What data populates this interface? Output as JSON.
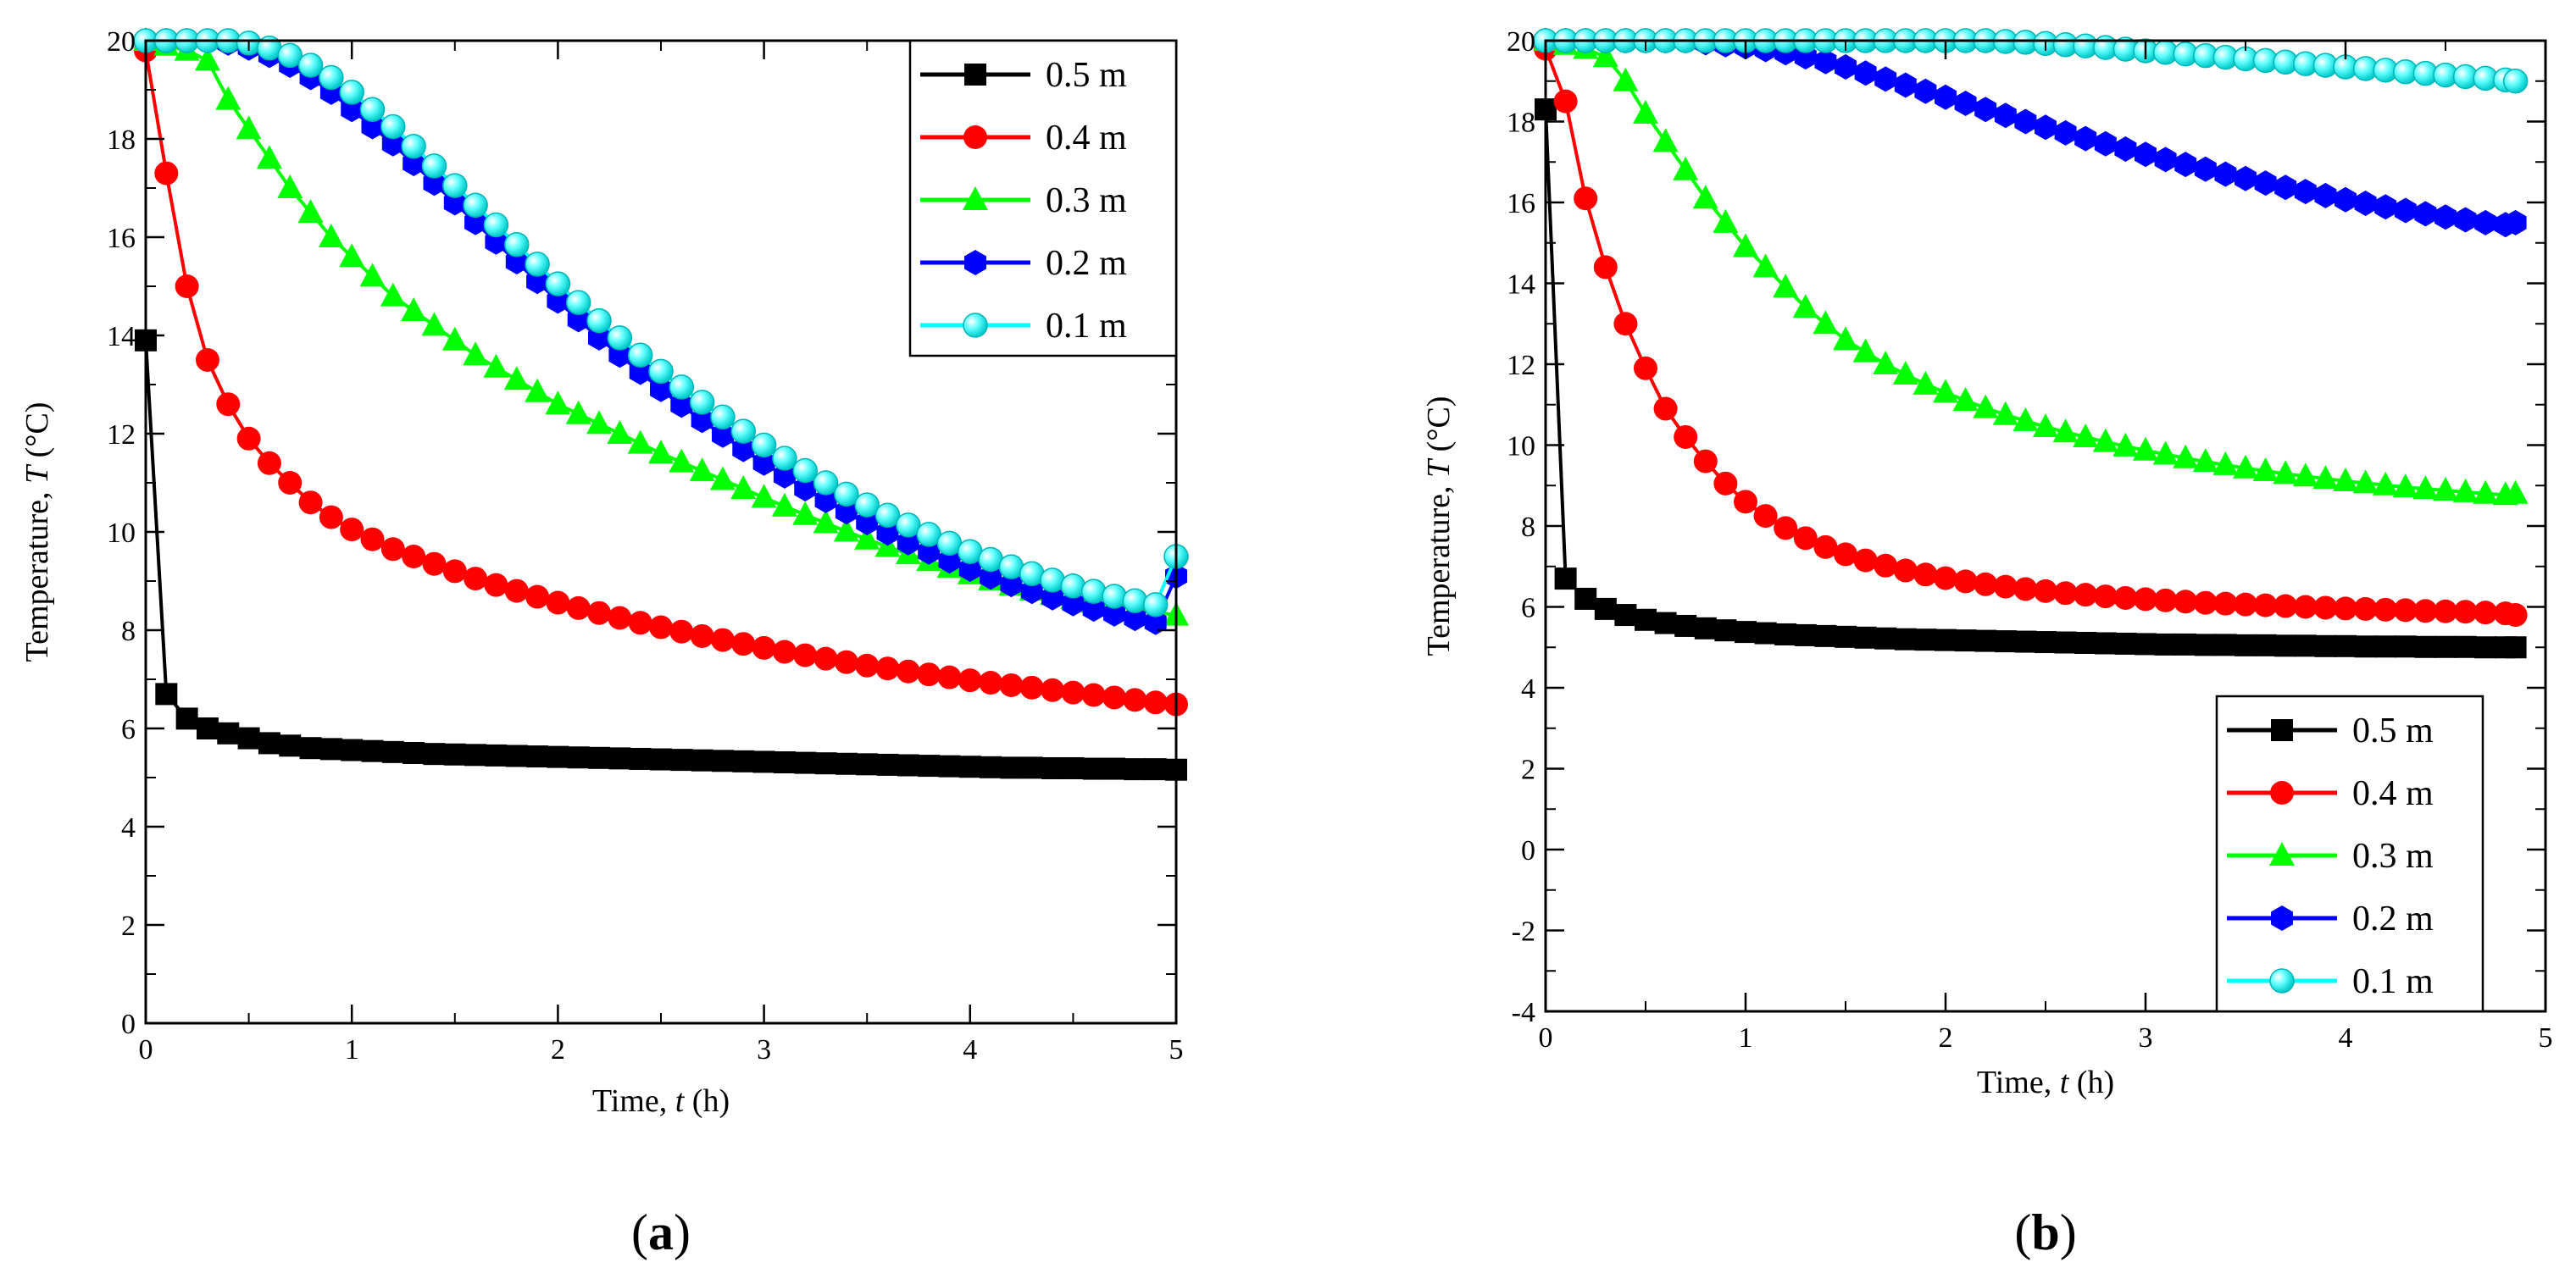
{
  "chart_data": [
    {
      "id": "a",
      "type": "line",
      "caption_open": "(",
      "caption_letter": "a",
      "caption_close": ")",
      "xlabel_prefix": "Time, ",
      "xlabel_symbol": "t",
      "xlabel_unit": " (h)",
      "ylabel_prefix": "Temperature, ",
      "ylabel_symbol": "T",
      "ylabel_unit": " (°C)",
      "xlim": [
        0,
        5
      ],
      "ylim": [
        0,
        20
      ],
      "xticks": [
        0,
        1,
        2,
        3,
        4,
        5
      ],
      "yticks": [
        0,
        2,
        4,
        6,
        8,
        10,
        12,
        14,
        16,
        18,
        20
      ],
      "xtick_labels": [
        "0",
        "1",
        "2",
        "3",
        "4",
        "5"
      ],
      "ytick_labels": [
        "0",
        "2",
        "4",
        "6",
        "8",
        "10",
        "12",
        "14",
        "16",
        "18",
        "20"
      ],
      "legend_position": "top-right",
      "x": [
        0.0,
        0.1,
        0.2,
        0.3,
        0.4,
        0.5,
        0.6,
        0.7,
        0.8,
        0.9,
        1.0,
        1.1,
        1.2,
        1.3,
        1.4,
        1.5,
        1.6,
        1.7,
        1.8,
        1.9,
        2.0,
        2.1,
        2.2,
        2.3,
        2.4,
        2.5,
        2.6,
        2.7,
        2.8,
        2.9,
        3.0,
        3.1,
        3.2,
        3.3,
        3.4,
        3.5,
        3.6,
        3.7,
        3.8,
        3.9,
        4.0,
        4.1,
        4.2,
        4.3,
        4.4,
        4.5,
        4.6,
        4.7,
        4.8,
        4.9,
        5.0
      ],
      "series": [
        {
          "name": "0.5 m",
          "color": "#000000",
          "marker": "square",
          "values": [
            13.9,
            6.7,
            6.2,
            6.0,
            5.9,
            5.8,
            5.7,
            5.65,
            5.6,
            5.58,
            5.56,
            5.54,
            5.52,
            5.5,
            5.48,
            5.47,
            5.46,
            5.45,
            5.44,
            5.43,
            5.42,
            5.41,
            5.4,
            5.39,
            5.38,
            5.37,
            5.36,
            5.35,
            5.34,
            5.33,
            5.32,
            5.31,
            5.3,
            5.29,
            5.28,
            5.27,
            5.26,
            5.25,
            5.24,
            5.23,
            5.22,
            5.21,
            5.2,
            5.2,
            5.19,
            5.19,
            5.18,
            5.18,
            5.17,
            5.17,
            5.16
          ]
        },
        {
          "name": "0.4 m",
          "color": "#ff0000",
          "marker": "circle",
          "values": [
            19.8,
            17.3,
            15.0,
            13.5,
            12.6,
            11.9,
            11.4,
            11.0,
            10.6,
            10.3,
            10.05,
            9.85,
            9.65,
            9.5,
            9.35,
            9.2,
            9.05,
            8.92,
            8.8,
            8.68,
            8.56,
            8.45,
            8.35,
            8.25,
            8.15,
            8.06,
            7.97,
            7.88,
            7.8,
            7.72,
            7.64,
            7.56,
            7.49,
            7.42,
            7.35,
            7.28,
            7.22,
            7.16,
            7.1,
            7.04,
            6.98,
            6.93,
            6.88,
            6.83,
            6.78,
            6.73,
            6.68,
            6.63,
            6.58,
            6.53,
            6.49
          ]
        },
        {
          "name": "0.3 m",
          "color": "#00ff00",
          "marker": "triangle",
          "values": [
            20.0,
            19.9,
            19.8,
            19.6,
            18.8,
            18.2,
            17.6,
            17.0,
            16.5,
            16.0,
            15.6,
            15.2,
            14.8,
            14.5,
            14.2,
            13.9,
            13.6,
            13.35,
            13.1,
            12.85,
            12.6,
            12.4,
            12.2,
            12.0,
            11.8,
            11.6,
            11.42,
            11.24,
            11.06,
            10.88,
            10.7,
            10.52,
            10.35,
            10.18,
            10.01,
            9.85,
            9.7,
            9.55,
            9.41,
            9.27,
            9.14,
            9.02,
            8.91,
            8.81,
            8.72,
            8.64,
            8.56,
            8.5,
            8.44,
            8.38,
            8.3
          ]
        },
        {
          "name": "0.2 m",
          "color": "#0000ff",
          "marker": "hexagon",
          "values": [
            20.0,
            20.0,
            20.0,
            20.0,
            19.95,
            19.85,
            19.7,
            19.5,
            19.25,
            18.95,
            18.6,
            18.25,
            17.9,
            17.5,
            17.1,
            16.7,
            16.3,
            15.9,
            15.5,
            15.1,
            14.7,
            14.32,
            13.95,
            13.6,
            13.25,
            12.9,
            12.58,
            12.27,
            11.97,
            11.68,
            11.4,
            11.14,
            10.88,
            10.64,
            10.41,
            10.19,
            9.98,
            9.78,
            9.59,
            9.41,
            9.24,
            9.08,
            8.93,
            8.79,
            8.66,
            8.54,
            8.43,
            8.33,
            8.24,
            8.16,
            9.1
          ]
        },
        {
          "name": "0.1 m",
          "color": "#00ffff",
          "marker": "sphere",
          "values": [
            20.0,
            20.0,
            20.0,
            20.0,
            20.0,
            19.95,
            19.85,
            19.7,
            19.5,
            19.25,
            18.95,
            18.6,
            18.25,
            17.85,
            17.45,
            17.05,
            16.65,
            16.25,
            15.85,
            15.45,
            15.05,
            14.67,
            14.3,
            13.95,
            13.6,
            13.27,
            12.95,
            12.64,
            12.34,
            12.05,
            11.77,
            11.5,
            11.25,
            11.0,
            10.77,
            10.55,
            10.34,
            10.14,
            9.95,
            9.77,
            9.6,
            9.44,
            9.29,
            9.15,
            9.02,
            8.9,
            8.79,
            8.69,
            8.6,
            8.52,
            9.5
          ]
        }
      ]
    },
    {
      "id": "b",
      "type": "line",
      "caption_open": "(",
      "caption_letter": "b",
      "caption_close": ")",
      "xlabel_prefix": "Time, ",
      "xlabel_symbol": "t",
      "xlabel_unit": " (h)",
      "ylabel_prefix": "Temperature, ",
      "ylabel_symbol": "T",
      "ylabel_unit": " (°C)",
      "xlim": [
        0,
        5
      ],
      "ylim": [
        -4,
        20
      ],
      "xticks": [
        0,
        1,
        2,
        3,
        4,
        5
      ],
      "yticks": [
        -4,
        -2,
        0,
        2,
        4,
        6,
        8,
        10,
        12,
        14,
        16,
        18,
        20
      ],
      "xtick_labels": [
        "0",
        "1",
        "2",
        "3",
        "4",
        "5"
      ],
      "ytick_labels": [
        "-4",
        "-2",
        "0",
        "2",
        "4",
        "6",
        "8",
        "10",
        "12",
        "14",
        "16",
        "18",
        "20"
      ],
      "legend_position": "bottom-right",
      "x": [
        0.0,
        0.1,
        0.2,
        0.3,
        0.4,
        0.5,
        0.6,
        0.7,
        0.8,
        0.9,
        1.0,
        1.1,
        1.2,
        1.3,
        1.4,
        1.5,
        1.6,
        1.7,
        1.8,
        1.9,
        2.0,
        2.1,
        2.2,
        2.3,
        2.4,
        2.5,
        2.6,
        2.7,
        2.8,
        2.9,
        3.0,
        3.1,
        3.2,
        3.3,
        3.4,
        3.5,
        3.6,
        3.7,
        3.8,
        3.9,
        4.0,
        4.1,
        4.2,
        4.3,
        4.4,
        4.5,
        4.6,
        4.7,
        4.8,
        4.85
      ],
      "series": [
        {
          "name": "0.5 m",
          "color": "#000000",
          "marker": "square",
          "values": [
            18.3,
            6.7,
            6.2,
            5.95,
            5.8,
            5.68,
            5.6,
            5.53,
            5.47,
            5.42,
            5.38,
            5.35,
            5.32,
            5.3,
            5.28,
            5.26,
            5.24,
            5.22,
            5.2,
            5.19,
            5.18,
            5.17,
            5.16,
            5.15,
            5.14,
            5.13,
            5.12,
            5.11,
            5.1,
            5.09,
            5.08,
            5.07,
            5.07,
            5.06,
            5.06,
            5.05,
            5.05,
            5.04,
            5.04,
            5.03,
            5.03,
            5.02,
            5.02,
            5.02,
            5.01,
            5.01,
            5.01,
            5.0,
            5.0,
            5.0
          ]
        },
        {
          "name": "0.4 m",
          "color": "#ff0000",
          "marker": "circle",
          "values": [
            19.8,
            18.5,
            16.1,
            14.4,
            13.0,
            11.9,
            10.9,
            10.2,
            9.6,
            9.05,
            8.6,
            8.25,
            7.95,
            7.7,
            7.48,
            7.3,
            7.15,
            7.02,
            6.9,
            6.8,
            6.71,
            6.63,
            6.56,
            6.5,
            6.44,
            6.39,
            6.34,
            6.3,
            6.26,
            6.22,
            6.19,
            6.16,
            6.13,
            6.1,
            6.08,
            6.06,
            6.04,
            6.02,
            6.0,
            5.98,
            5.96,
            5.95,
            5.93,
            5.92,
            5.9,
            5.89,
            5.88,
            5.86,
            5.84,
            5.8
          ]
        },
        {
          "name": "0.3 m",
          "color": "#00ff00",
          "marker": "triangle",
          "values": [
            20.0,
            19.9,
            19.8,
            19.6,
            19.0,
            18.2,
            17.5,
            16.8,
            16.1,
            15.5,
            14.9,
            14.4,
            13.9,
            13.4,
            13.0,
            12.6,
            12.3,
            12.0,
            11.75,
            11.5,
            11.3,
            11.1,
            10.92,
            10.75,
            10.6,
            10.45,
            10.32,
            10.2,
            10.08,
            9.97,
            9.87,
            9.77,
            9.68,
            9.59,
            9.51,
            9.43,
            9.36,
            9.29,
            9.23,
            9.17,
            9.11,
            9.06,
            9.01,
            8.96,
            8.92,
            8.88,
            8.84,
            8.8,
            8.77,
            8.8
          ]
        },
        {
          "name": "0.2 m",
          "color": "#0000ff",
          "marker": "hexagon",
          "values": [
            20.0,
            20.0,
            20.0,
            20.0,
            20.0,
            20.0,
            20.0,
            20.0,
            19.95,
            19.9,
            19.85,
            19.78,
            19.7,
            19.6,
            19.48,
            19.35,
            19.2,
            19.05,
            18.9,
            18.75,
            18.6,
            18.45,
            18.3,
            18.15,
            18.0,
            17.86,
            17.72,
            17.58,
            17.45,
            17.32,
            17.19,
            17.06,
            16.94,
            16.82,
            16.7,
            16.59,
            16.48,
            16.37,
            16.27,
            16.17,
            16.07,
            15.98,
            15.89,
            15.8,
            15.72,
            15.64,
            15.57,
            15.5,
            15.45,
            15.5
          ]
        },
        {
          "name": "0.1 m",
          "color": "#00ffff",
          "marker": "sphere",
          "values": [
            20.0,
            20.0,
            20.0,
            20.0,
            20.0,
            20.0,
            20.0,
            20.0,
            20.0,
            20.0,
            20.0,
            20.0,
            20.0,
            20.0,
            20.0,
            20.0,
            20.0,
            20.0,
            20.0,
            20.0,
            20.0,
            20.0,
            20.0,
            19.98,
            19.96,
            19.93,
            19.9,
            19.87,
            19.83,
            19.79,
            19.75,
            19.71,
            19.67,
            19.63,
            19.59,
            19.55,
            19.51,
            19.47,
            19.43,
            19.39,
            19.35,
            19.31,
            19.27,
            19.23,
            19.19,
            19.15,
            19.11,
            19.07,
            19.03,
            19.0
          ]
        }
      ]
    }
  ]
}
